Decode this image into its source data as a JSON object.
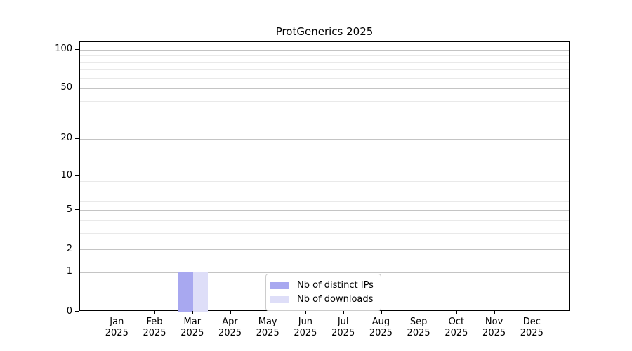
{
  "title": "ProtGenerics 2025",
  "chart_data": {
    "type": "bar",
    "title": "ProtGenerics 2025",
    "categories": [
      "Jan",
      "Feb",
      "Mar",
      "Apr",
      "May",
      "Jun",
      "Jul",
      "Aug",
      "Sep",
      "Oct",
      "Nov",
      "Dec"
    ],
    "x_year_line": "2025",
    "series": [
      {
        "name": "Nb of distinct IPs",
        "color": "#a8a8f0",
        "values": [
          0,
          0,
          1,
          0,
          0,
          0,
          0,
          0,
          0,
          0,
          0,
          0
        ]
      },
      {
        "name": "Nb of downloads",
        "color": "#dedef8",
        "values": [
          0,
          0,
          1,
          0,
          0,
          0,
          0,
          0,
          0,
          0,
          0,
          0
        ]
      }
    ],
    "xlabel": "",
    "ylabel": "",
    "y_scale": "log1p",
    "ylim": [
      0,
      115
    ],
    "y_major_ticks": [
      0,
      1,
      2,
      5,
      10,
      20,
      50,
      100
    ],
    "y_minor_ticks": [
      3,
      4,
      6,
      7,
      8,
      9,
      30,
      40,
      60,
      70,
      80,
      90
    ],
    "grid": "horizontal-on",
    "legend_position": "lower center"
  },
  "colors": {
    "axis": "#000000",
    "grid_major": "#c4c4c4",
    "grid_minor": "#e9e9e9",
    "background": "#ffffff"
  }
}
